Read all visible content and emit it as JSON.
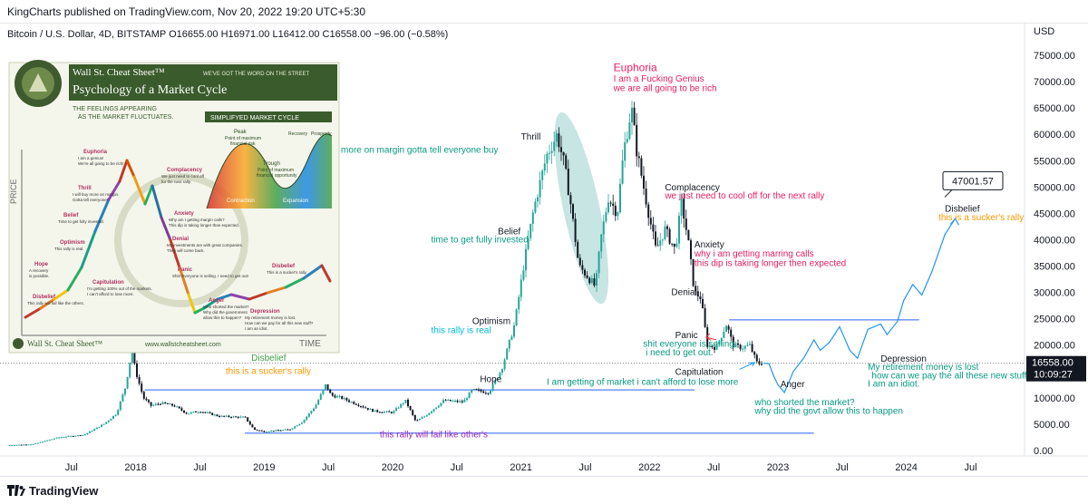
{
  "header": {
    "published": "KingCharts published on TradingView.com, Nov 20, 2022 19:20 UTC+5:30"
  },
  "footer": {
    "brand": "TradingView"
  },
  "chart_data": {
    "type": "candlestick",
    "symbol_line": "Bitcoin / U.S. Dollar, 4D, BITSTAMP  O16655.00  H16971.00  L16412.00  C16558.00  −96.00 (−0.58%)",
    "currency": "USD",
    "y_ticks": [
      0,
      5000,
      10000,
      15000,
      20000,
      25000,
      30000,
      35000,
      40000,
      45000,
      50000,
      55000,
      60000,
      65000,
      70000,
      75000
    ],
    "y_tick_labels": [
      "0.00",
      "5000.00",
      "10000.00",
      "15000.00",
      "20000.00",
      "25000.00",
      "30000.00",
      "35000.00",
      "40000.00",
      "45000.00",
      "50000.00",
      "55000.00",
      "60000.00",
      "65000.00",
      "70000.00",
      "75000.00"
    ],
    "x_ticks": [
      {
        "t": 2017.5,
        "label": "Jul"
      },
      {
        "t": 2018.0,
        "label": "2018"
      },
      {
        "t": 2018.5,
        "label": "Jul"
      },
      {
        "t": 2019.0,
        "label": "2019"
      },
      {
        "t": 2019.5,
        "label": "Jul"
      },
      {
        "t": 2020.0,
        "label": "2020"
      },
      {
        "t": 2020.5,
        "label": "Jul"
      },
      {
        "t": 2021.0,
        "label": "2021"
      },
      {
        "t": 2021.5,
        "label": "Jul"
      },
      {
        "t": 2022.0,
        "label": "2022"
      },
      {
        "t": 2022.5,
        "label": "Jul"
      },
      {
        "t": 2023.0,
        "label": "2023"
      },
      {
        "t": 2023.5,
        "label": "Jul"
      },
      {
        "t": 2024.0,
        "label": "2024"
      },
      {
        "t": 2024.5,
        "label": "Jul"
      }
    ],
    "price_path": [
      [
        2017.0,
        1000
      ],
      [
        2017.2,
        1200
      ],
      [
        2017.4,
        2500
      ],
      [
        2017.6,
        3000
      ],
      [
        2017.75,
        5000
      ],
      [
        2017.85,
        7000
      ],
      [
        2017.92,
        12000
      ],
      [
        2017.97,
        19000
      ],
      [
        2018.0,
        15000
      ],
      [
        2018.06,
        10000
      ],
      [
        2018.12,
        8500
      ],
      [
        2018.2,
        9000
      ],
      [
        2018.3,
        8500
      ],
      [
        2018.4,
        7000
      ],
      [
        2018.5,
        7500
      ],
      [
        2018.65,
        6500
      ],
      [
        2018.85,
        6300
      ],
      [
        2018.92,
        4000
      ],
      [
        2019.0,
        3600
      ],
      [
        2019.2,
        4000
      ],
      [
        2019.3,
        5500
      ],
      [
        2019.4,
        8500
      ],
      [
        2019.48,
        12500
      ],
      [
        2019.52,
        10500
      ],
      [
        2019.6,
        10000
      ],
      [
        2019.75,
        8500
      ],
      [
        2019.85,
        7500
      ],
      [
        2020.0,
        7200
      ],
      [
        2020.1,
        9500
      ],
      [
        2020.18,
        5500
      ],
      [
        2020.25,
        6500
      ],
      [
        2020.4,
        9500
      ],
      [
        2020.55,
        9200
      ],
      [
        2020.62,
        11500
      ],
      [
        2020.75,
        11000
      ],
      [
        2020.85,
        15500
      ],
      [
        2020.95,
        24000
      ],
      [
        2021.02,
        35000
      ],
      [
        2021.1,
        46000
      ],
      [
        2021.2,
        56000
      ],
      [
        2021.28,
        60000
      ],
      [
        2021.33,
        55000
      ],
      [
        2021.38,
        48000
      ],
      [
        2021.45,
        35000
      ],
      [
        2021.52,
        33000
      ],
      [
        2021.58,
        31000
      ],
      [
        2021.62,
        40000
      ],
      [
        2021.68,
        48000
      ],
      [
        2021.75,
        45000
      ],
      [
        2021.8,
        57000
      ],
      [
        2021.86,
        65000
      ],
      [
        2021.9,
        57000
      ],
      [
        2021.97,
        48000
      ],
      [
        2022.05,
        38000
      ],
      [
        2022.12,
        42000
      ],
      [
        2022.2,
        38000
      ],
      [
        2022.25,
        47000
      ],
      [
        2022.3,
        40000
      ],
      [
        2022.35,
        30000
      ],
      [
        2022.4,
        29000
      ],
      [
        2022.45,
        20000
      ],
      [
        2022.52,
        19500
      ],
      [
        2022.6,
        24000
      ],
      [
        2022.65,
        20000
      ],
      [
        2022.72,
        19500
      ],
      [
        2022.78,
        20000
      ],
      [
        2022.84,
        16500
      ],
      [
        2022.885,
        16558
      ]
    ],
    "projection_path": [
      [
        2022.885,
        16558
      ],
      [
        2022.93,
        16500
      ],
      [
        2022.97,
        14000
      ],
      [
        2023.0,
        12500
      ],
      [
        2023.05,
        11000
      ],
      [
        2023.12,
        15000
      ],
      [
        2023.2,
        17500
      ],
      [
        2023.28,
        21000
      ],
      [
        2023.33,
        19000
      ],
      [
        2023.4,
        20500
      ],
      [
        2023.48,
        23500
      ],
      [
        2023.56,
        19000
      ],
      [
        2023.62,
        17500
      ],
      [
        2023.7,
        23000
      ],
      [
        2023.8,
        24000
      ],
      [
        2023.85,
        22000
      ],
      [
        2023.93,
        24500
      ],
      [
        2023.98,
        28500
      ],
      [
        2024.05,
        31500
      ],
      [
        2024.12,
        29500
      ],
      [
        2024.2,
        34000
      ],
      [
        2024.3,
        41000
      ],
      [
        2024.38,
        44000
      ]
    ],
    "h_lines": [
      {
        "y": 11500,
        "from": 2018.07,
        "to": 2022.35
      },
      {
        "y": 3300,
        "from": 2018.85,
        "to": 2023.28
      },
      {
        "y": 24800,
        "from": 2022.62,
        "to": 2024.1
      }
    ],
    "current_price": {
      "value": 16558,
      "label": "16558.00",
      "countdown": "10:09:27"
    },
    "price_callout": "47001.57",
    "annotations": [
      {
        "text": "Euphoria",
        "t": 2021.72,
        "y": 72000,
        "color": "#e91e63",
        "size": 12
      },
      {
        "text": "I am a Fucking Genius",
        "t": 2021.72,
        "y": 70000,
        "color": "#e91e63",
        "size": 10
      },
      {
        "text": "we are all going to be rich",
        "t": 2021.72,
        "y": 68200,
        "color": "#e91e63",
        "size": 10
      },
      {
        "text": "Thrill",
        "t": 2021.0,
        "y": 59000,
        "color": "#131722",
        "size": 10
      },
      {
        "text": "I will Buy more on margin gotta tell everyone buy",
        "t": 2019.3,
        "y": 56500,
        "color": "#089981",
        "size": 10
      },
      {
        "text": "Complacency",
        "t": 2022.12,
        "y": 49400,
        "color": "#131722",
        "size": 10
      },
      {
        "text": "we just need to cool off for the next rally",
        "t": 2022.12,
        "y": 47800,
        "color": "#e91e63",
        "size": 10
      },
      {
        "text": "Belief",
        "t": 2020.82,
        "y": 41000,
        "color": "#131722",
        "size": 10
      },
      {
        "text": "time to get fully invested",
        "t": 2020.3,
        "y": 39500,
        "color": "#089981",
        "size": 10
      },
      {
        "text": "Anxiety",
        "t": 2022.35,
        "y": 38500,
        "color": "#131722",
        "size": 10
      },
      {
        "text": "why i am getting marring calls",
        "t": 2022.35,
        "y": 36800,
        "color": "#e91e63",
        "size": 10
      },
      {
        "text": "this dip is taking longer then expected",
        "t": 2022.35,
        "y": 35000,
        "color": "#e91e63",
        "size": 10
      },
      {
        "text": "Denial",
        "t": 2022.17,
        "y": 29500,
        "color": "#131722",
        "size": 10
      },
      {
        "text": "Optimism",
        "t": 2020.62,
        "y": 24000,
        "color": "#131722",
        "size": 10
      },
      {
        "text": "this rally is real",
        "t": 2020.3,
        "y": 22300,
        "color": "#00bcd4",
        "size": 10
      },
      {
        "text": "Panic",
        "t": 2022.2,
        "y": 21300,
        "color": "#131722",
        "size": 10
      },
      {
        "text": "shit everyone is selling",
        "t": 2021.95,
        "y": 19700,
        "color": "#089981",
        "size": 10
      },
      {
        "text": "i need to get out.",
        "t": 2021.97,
        "y": 18100,
        "color": "#089981",
        "size": 10
      },
      {
        "text": "Depression",
        "t": 2023.8,
        "y": 16900,
        "color": "#131722",
        "size": 10
      },
      {
        "text": "My retirement money is lost",
        "t": 2023.7,
        "y": 15300,
        "color": "#089981",
        "size": 10
      },
      {
        "text": "how can we pay the all these new stuff",
        "t": 2023.73,
        "y": 13700,
        "color": "#089981",
        "size": 10
      },
      {
        "text": "I am an idiot.",
        "t": 2023.7,
        "y": 12100,
        "color": "#089981",
        "size": 10
      },
      {
        "text": "Capitulation",
        "t": 2022.2,
        "y": 14400,
        "color": "#131722",
        "size": 10
      },
      {
        "text": "I am getting of market i can't afford to lose more",
        "t": 2021.2,
        "y": 12500,
        "color": "#089981",
        "size": 10
      },
      {
        "text": "Anger",
        "t": 2023.02,
        "y": 12000,
        "color": "#131722",
        "size": 10
      },
      {
        "text": "who shorted the market?",
        "t": 2022.82,
        "y": 8600,
        "color": "#089981",
        "size": 10
      },
      {
        "text": "why did the govt allow this to happen",
        "t": 2022.82,
        "y": 7000,
        "color": "#089981",
        "size": 10
      },
      {
        "text": "Disbelief",
        "t": 2018.9,
        "y": 17000,
        "color": "#43a047",
        "size": 10
      },
      {
        "text": "this is a sucker's rally",
        "t": 2018.7,
        "y": 14500,
        "color": "#ff9800",
        "size": 10
      },
      {
        "text": "Hope",
        "t": 2020.68,
        "y": 13000,
        "color": "#131722",
        "size": 10
      },
      {
        "text": "this rally will fail like other's",
        "t": 2019.9,
        "y": 2500,
        "color": "#9c27b0",
        "size": 10
      },
      {
        "text": "Disbelief",
        "t": 2024.3,
        "y": 45300,
        "color": "#131722",
        "size": 10
      },
      {
        "text": "this is a sucker's rally",
        "t": 2024.25,
        "y": 43700,
        "color": "#ff9800",
        "size": 10
      }
    ]
  },
  "inset": {
    "title1": "Wall St. Cheat Sheet™",
    "tagline": "WE'VE GOT THE WORD ON THE STREET",
    "title2": "Psychology of a Market Cycle",
    "subtitle1": "THE FEELINGS APPEARING",
    "subtitle2": "AS THE MARKET FLUCTUATES.",
    "simplified": "SIMPLIFYED MARKET CYCLE",
    "price": "PRICE",
    "time": "TIME",
    "url": "www.wallstcheatsheet.com",
    "footer_brand": "Wall St. Cheat Sheet™",
    "mini_peak": "Peak",
    "mini_peak2": "Point of maximum",
    "mini_peak3": "financial risk",
    "mini_trough": "Trough",
    "mini_trough2": "Point of maximum",
    "mini_trough3": "financial opportunity",
    "mini_recovery": "Recovery",
    "mini_prosperity": "Prosperity",
    "mini_contraction": "Contraction",
    "mini_expansion": "Expansion",
    "stages": [
      {
        "name": "Euphoria",
        "lines": [
          "I am a genius!",
          "We're all going to be rich!"
        ]
      },
      {
        "name": "Complacency",
        "lines": [
          "We just need to cool off",
          "for the next rally."
        ]
      },
      {
        "name": "Thrill",
        "lines": [
          "I will buy more on margin.",
          "Gotta tell everyone!"
        ]
      },
      {
        "name": "Anxiety",
        "lines": [
          "Why am I getting margin calls?",
          "This dip is taking longer than expected."
        ]
      },
      {
        "name": "Belief",
        "lines": [
          "Time to get fully invested."
        ]
      },
      {
        "name": "Denial",
        "lines": [
          "My investments are with great companies.",
          "They will come back."
        ]
      },
      {
        "name": "Optimism",
        "lines": [
          "This rally is real."
        ]
      },
      {
        "name": "Panic",
        "lines": [
          "Shit! Everyone is selling. I need to get out!"
        ]
      },
      {
        "name": "Hope",
        "lines": [
          "A recovery",
          "is possible."
        ]
      },
      {
        "name": "Capitulation",
        "lines": [
          "I'm getting 100% out of the markets.",
          "I can't afford to lose more."
        ]
      },
      {
        "name": "Disbelief",
        "lines": [
          "This rally will fail like the others."
        ]
      },
      {
        "name": "Anger",
        "lines": [
          "Who shorted the market?",
          "Why did the government",
          "allow this to happen?"
        ]
      },
      {
        "name": "Depression",
        "lines": [
          "My retirement money is lost.",
          "How can we pay for all this new stuff?",
          "I am an idiot."
        ]
      },
      {
        "name": "Disbelief",
        "lines": [
          "This is a sucker's rally."
        ]
      }
    ]
  },
  "colors": {
    "up": "#26a69a",
    "down": "#131722",
    "h_line": "#2962ff",
    "projection": "#2196f3",
    "price_badge": "#131722",
    "shade": "#00897b"
  }
}
